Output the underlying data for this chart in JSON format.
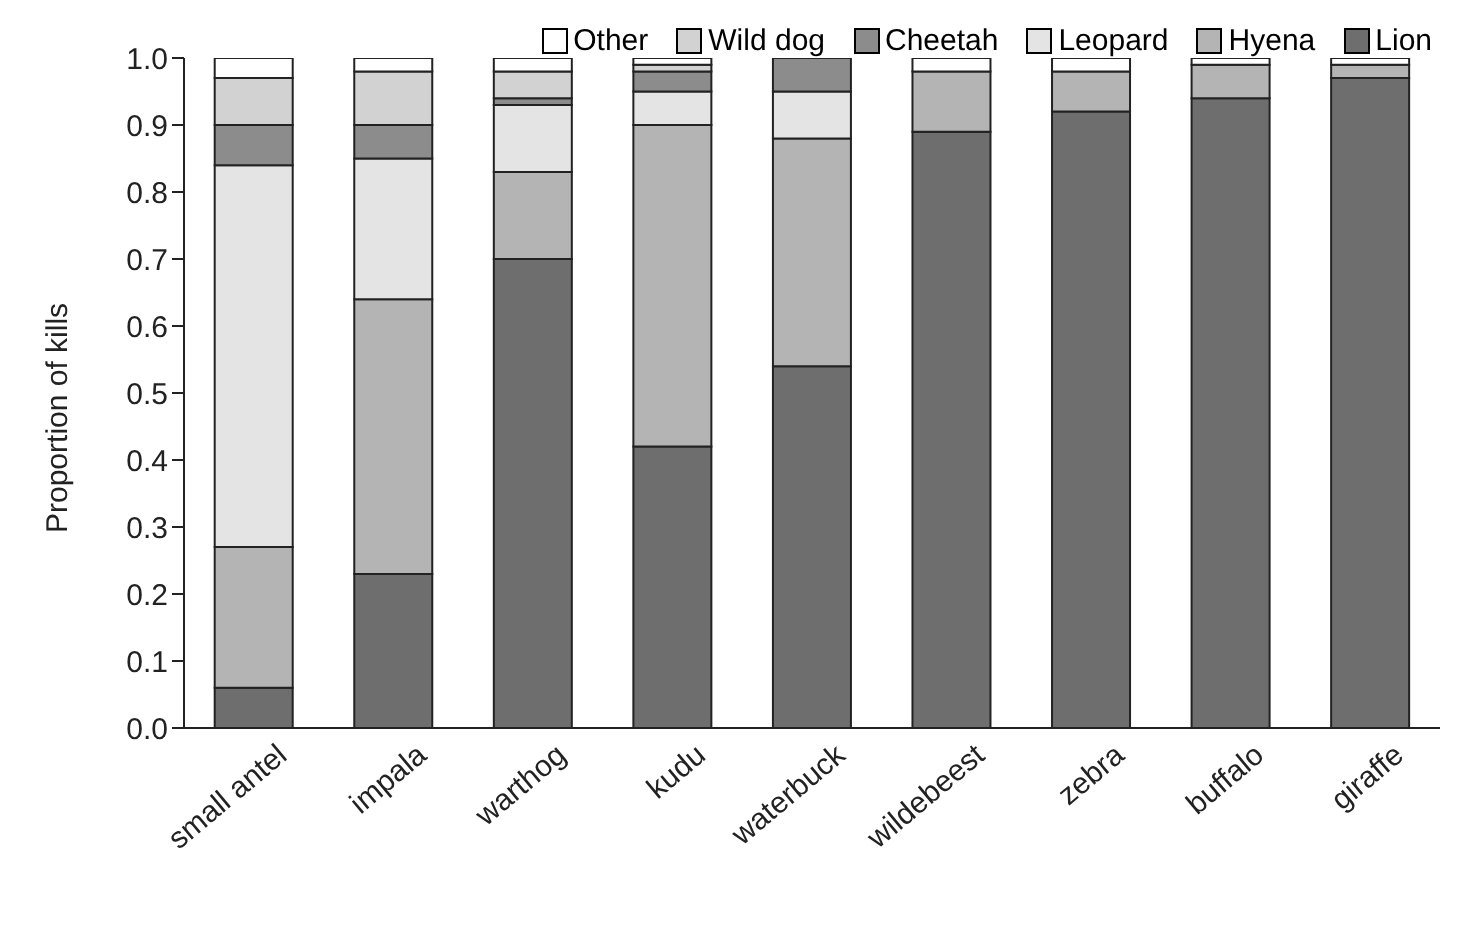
{
  "chart_data": {
    "type": "bar",
    "stacked": true,
    "ylabel": "Proportion of kills",
    "categories": [
      "small antel",
      "impala",
      "warthog",
      "kudu",
      "waterbuck",
      "wildebeest",
      "zebra",
      "buffalo",
      "giraffe"
    ],
    "series": [
      {
        "name": "Lion",
        "color": "#6e6e6e",
        "values": [
          0.06,
          0.23,
          0.7,
          0.42,
          0.54,
          0.89,
          0.92,
          0.94,
          0.97
        ]
      },
      {
        "name": "Hyena",
        "color": "#b4b4b4",
        "values": [
          0.21,
          0.41,
          0.13,
          0.48,
          0.34,
          0.09,
          0.06,
          0.05,
          0.02
        ]
      },
      {
        "name": "Leopard",
        "color": "#e4e4e4",
        "values": [
          0.57,
          0.21,
          0.1,
          0.05,
          0.07,
          0,
          0,
          0,
          0
        ]
      },
      {
        "name": "Cheetah",
        "color": "#8c8c8c",
        "values": [
          0.06,
          0.05,
          0.01,
          0.03,
          0.05,
          0,
          0,
          0,
          0
        ]
      },
      {
        "name": "Wild dog",
        "color": "#d2d2d2",
        "values": [
          0.07,
          0.08,
          0.04,
          0.01,
          0,
          0,
          0,
          0,
          0
        ]
      },
      {
        "name": "Other",
        "color": "#ffffff",
        "values": [
          0.03,
          0.02,
          0.02,
          0.01,
          0,
          0.02,
          0.02,
          0.01,
          0.01
        ]
      }
    ],
    "ylim": [
      0,
      1
    ],
    "yticks": [
      {
        "value": 0,
        "label": "0.0"
      },
      {
        "value": 0.1,
        "label": "0.1"
      },
      {
        "value": 0.2,
        "label": "0.2"
      },
      {
        "value": 0.3,
        "label": "0.3"
      },
      {
        "value": 0.4,
        "label": "0.4"
      },
      {
        "value": 0.5,
        "label": "0.5"
      },
      {
        "value": 0.6,
        "label": "0.6"
      },
      {
        "value": 0.7,
        "label": "0.7"
      },
      {
        "value": 0.8,
        "label": "0.8"
      },
      {
        "value": 0.9,
        "label": "0.9"
      },
      {
        "value": 1,
        "label": "1.0"
      }
    ],
    "grid": false,
    "legend": "top"
  }
}
